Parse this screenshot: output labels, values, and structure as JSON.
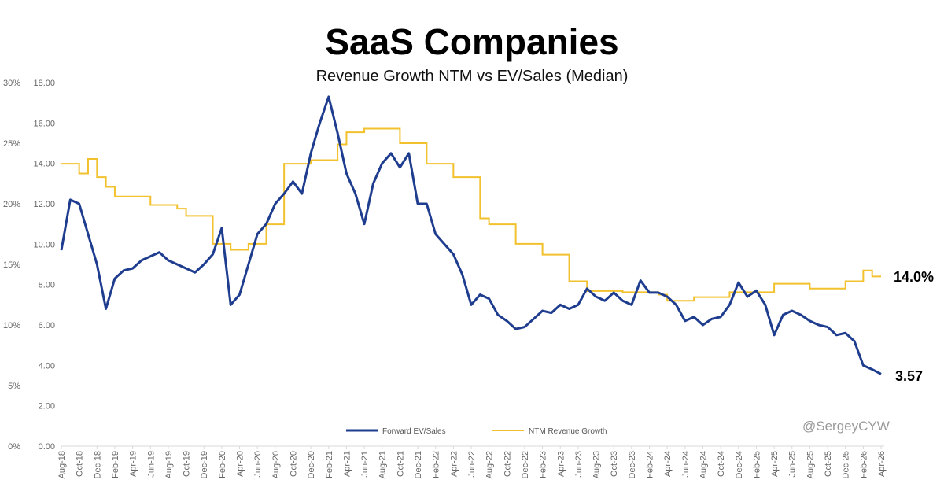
{
  "chart_data": {
    "type": "line",
    "title": "SaaS Companies",
    "subtitle": "Revenue Growth NTM vs EV/Sales (Median)",
    "x_ticks": [
      "Aug-18",
      "Oct-18",
      "Dec-18",
      "Feb-19",
      "Apr-19",
      "Jun-19",
      "Aug-19",
      "Oct-19",
      "Dec-19",
      "Feb-20",
      "Apr-20",
      "Jun-20",
      "Aug-20",
      "Oct-20",
      "Dec-20",
      "Feb-21",
      "Apr-21",
      "Jun-21",
      "Aug-21",
      "Oct-21",
      "Dec-21",
      "Feb-22",
      "Apr-22",
      "Jun-22",
      "Aug-22",
      "Oct-22",
      "Dec-22",
      "Feb-23",
      "Apr-23",
      "Jun-23",
      "Aug-23",
      "Oct-23",
      "Dec-23",
      "Feb-24",
      "Apr-24",
      "Jun-24",
      "Aug-24",
      "Oct-24",
      "Dec-24",
      "Feb-25",
      "Apr-25",
      "Jun-25",
      "Aug-25",
      "Oct-25",
      "Dec-25",
      "Feb-26",
      "Apr-26"
    ],
    "y_left_outer": {
      "ticks": [
        "0%",
        "5%",
        "10%",
        "15%",
        "20%",
        "25%",
        "30%"
      ],
      "ylim": [
        0,
        30
      ]
    },
    "y_left_inner": {
      "ticks": [
        "0.00",
        "2.00",
        "4.00",
        "6.00",
        "8.00",
        "10.00",
        "12.00",
        "14.00",
        "16.00",
        "18.00"
      ],
      "ylim": [
        0,
        18
      ]
    },
    "grid": false,
    "legend_position": "bottom",
    "series": [
      {
        "name": "Forward EV/Sales",
        "axis": "inner",
        "color": "#1f3d8f",
        "end_label": "3.57",
        "points": [
          [
            "2018-08",
            9.7
          ],
          [
            "2018-09",
            12.2
          ],
          [
            "2018-10",
            12.0
          ],
          [
            "2018-11",
            10.5
          ],
          [
            "2018-12",
            9.0
          ],
          [
            "2019-01",
            6.8
          ],
          [
            "2019-02",
            8.3
          ],
          [
            "2019-03",
            8.7
          ],
          [
            "2019-04",
            8.8
          ],
          [
            "2019-05",
            9.2
          ],
          [
            "2019-06",
            9.4
          ],
          [
            "2019-07",
            9.6
          ],
          [
            "2019-08",
            9.2
          ],
          [
            "2019-09",
            9.0
          ],
          [
            "2019-10",
            8.8
          ],
          [
            "2019-11",
            8.6
          ],
          [
            "2019-12",
            9.0
          ],
          [
            "2020-01",
            9.5
          ],
          [
            "2020-02",
            10.8
          ],
          [
            "2020-03",
            7.0
          ],
          [
            "2020-04",
            7.5
          ],
          [
            "2020-05",
            9.0
          ],
          [
            "2020-06",
            10.5
          ],
          [
            "2020-07",
            11.0
          ],
          [
            "2020-08",
            12.0
          ],
          [
            "2020-09",
            12.5
          ],
          [
            "2020-10",
            13.1
          ],
          [
            "2020-11",
            12.5
          ],
          [
            "2020-12",
            14.5
          ],
          [
            "2021-01",
            16.0
          ],
          [
            "2021-02",
            17.3
          ],
          [
            "2021-03",
            15.5
          ],
          [
            "2021-04",
            13.5
          ],
          [
            "2021-05",
            12.5
          ],
          [
            "2021-06",
            11.0
          ],
          [
            "2021-07",
            13.0
          ],
          [
            "2021-08",
            14.0
          ],
          [
            "2021-09",
            14.5
          ],
          [
            "2021-10",
            13.8
          ],
          [
            "2021-11",
            14.5
          ],
          [
            "2021-12",
            12.0
          ],
          [
            "2022-01",
            12.0
          ],
          [
            "2022-02",
            10.5
          ],
          [
            "2022-03",
            10.0
          ],
          [
            "2022-04",
            9.5
          ],
          [
            "2022-05",
            8.5
          ],
          [
            "2022-06",
            7.0
          ],
          [
            "2022-07",
            7.5
          ],
          [
            "2022-08",
            7.3
          ],
          [
            "2022-09",
            6.5
          ],
          [
            "2022-10",
            6.2
          ],
          [
            "2022-11",
            5.8
          ],
          [
            "2022-12",
            5.9
          ],
          [
            "2023-01",
            6.3
          ],
          [
            "2023-02",
            6.7
          ],
          [
            "2023-03",
            6.6
          ],
          [
            "2023-04",
            7.0
          ],
          [
            "2023-05",
            6.8
          ],
          [
            "2023-06",
            7.0
          ],
          [
            "2023-07",
            7.8
          ],
          [
            "2023-08",
            7.4
          ],
          [
            "2023-09",
            7.2
          ],
          [
            "2023-10",
            7.6
          ],
          [
            "2023-11",
            7.2
          ],
          [
            "2023-12",
            7.0
          ],
          [
            "2024-01",
            8.2
          ],
          [
            "2024-02",
            7.6
          ],
          [
            "2024-03",
            7.6
          ],
          [
            "2024-04",
            7.4
          ],
          [
            "2024-05",
            7.0
          ],
          [
            "2024-06",
            6.2
          ],
          [
            "2024-07",
            6.4
          ],
          [
            "2024-08",
            6.0
          ],
          [
            "2024-09",
            6.3
          ],
          [
            "2024-10",
            6.4
          ],
          [
            "2024-11",
            7.0
          ],
          [
            "2024-12",
            8.1
          ],
          [
            "2025-01",
            7.4
          ],
          [
            "2025-02",
            7.7
          ],
          [
            "2025-03",
            7.0
          ],
          [
            "2025-04",
            5.5
          ],
          [
            "2025-05",
            6.5
          ],
          [
            "2025-06",
            6.7
          ],
          [
            "2025-07",
            6.5
          ],
          [
            "2025-08",
            6.2
          ],
          [
            "2025-09",
            6.0
          ],
          [
            "2025-10",
            5.9
          ],
          [
            "2025-11",
            5.5
          ],
          [
            "2025-12",
            5.6
          ],
          [
            "2026-01",
            5.2
          ],
          [
            "2026-02",
            4.0
          ],
          [
            "2026-03",
            3.8
          ],
          [
            "2026-04",
            3.57
          ]
        ]
      },
      {
        "name": "NTM Revenue Growth",
        "axis": "outer",
        "unit": "%",
        "color": "#f2c12e",
        "end_label": "14.0%",
        "points": [
          [
            "2018-08",
            23.3
          ],
          [
            "2018-10",
            22.5
          ],
          [
            "2018-11",
            23.7
          ],
          [
            "2018-12",
            22.2
          ],
          [
            "2019-01",
            21.4
          ],
          [
            "2019-02",
            20.6
          ],
          [
            "2019-06",
            19.9
          ],
          [
            "2019-09",
            19.6
          ],
          [
            "2019-10",
            19.0
          ],
          [
            "2020-01",
            16.7
          ],
          [
            "2020-03",
            16.2
          ],
          [
            "2020-05",
            16.7
          ],
          [
            "2020-07",
            18.3
          ],
          [
            "2020-09",
            23.3
          ],
          [
            "2020-12",
            23.6
          ],
          [
            "2021-03",
            24.9
          ],
          [
            "2021-04",
            25.9
          ],
          [
            "2021-06",
            26.2
          ],
          [
            "2021-10",
            25.0
          ],
          [
            "2022-01",
            23.3
          ],
          [
            "2022-04",
            22.2
          ],
          [
            "2022-07",
            18.8
          ],
          [
            "2022-08",
            18.3
          ],
          [
            "2022-11",
            16.7
          ],
          [
            "2023-02",
            15.8
          ],
          [
            "2023-05",
            13.6
          ],
          [
            "2023-07",
            12.8
          ],
          [
            "2023-11",
            12.7
          ],
          [
            "2024-03",
            12.5
          ],
          [
            "2024-04",
            12.0
          ],
          [
            "2024-07",
            12.3
          ],
          [
            "2024-11",
            12.7
          ],
          [
            "2025-04",
            13.4
          ],
          [
            "2025-08",
            13.0
          ],
          [
            "2025-12",
            13.6
          ],
          [
            "2026-02",
            14.5
          ],
          [
            "2026-03",
            14.0
          ],
          [
            "2026-04",
            14.0
          ]
        ]
      }
    ],
    "watermark": "@SergeyCYW"
  }
}
